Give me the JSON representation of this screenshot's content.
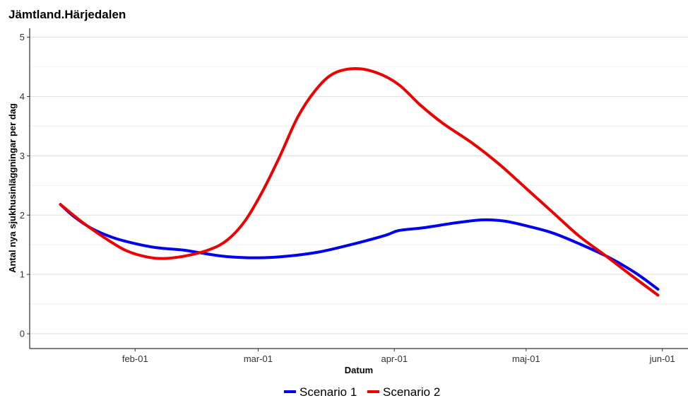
{
  "chart_data": {
    "type": "line",
    "title": "Jämtland.Härjedalen",
    "xlabel": "Datum",
    "ylabel": "Antal nya sjukhusinläggningar per dag",
    "x_type": "date",
    "x_ticks": [
      {
        "date": "2021-02-01",
        "label": "feb-01"
      },
      {
        "date": "2021-03-01",
        "label": "mar-01"
      },
      {
        "date": "2021-04-01",
        "label": "apr-01"
      },
      {
        "date": "2021-05-01",
        "label": "maj-01"
      },
      {
        "date": "2021-06-01",
        "label": "jun-01"
      }
    ],
    "xlim": [
      "2021-01-08",
      "2021-06-07"
    ],
    "ylim": [
      -0.25,
      5.15
    ],
    "y_ticks": [
      0,
      1,
      2,
      3,
      4,
      5
    ],
    "grid": true,
    "legend_position": "bottom",
    "series": [
      {
        "name": "Scenario 1",
        "color": "#0000ee",
        "points": [
          [
            "2021-01-15",
            2.18
          ],
          [
            "2021-01-18",
            1.98
          ],
          [
            "2021-01-22",
            1.78
          ],
          [
            "2021-01-27",
            1.62
          ],
          [
            "2021-02-01",
            1.52
          ],
          [
            "2021-02-06",
            1.45
          ],
          [
            "2021-02-12",
            1.41
          ],
          [
            "2021-02-17",
            1.35
          ],
          [
            "2021-02-22",
            1.3
          ],
          [
            "2021-03-01",
            1.28
          ],
          [
            "2021-03-08",
            1.31
          ],
          [
            "2021-03-15",
            1.38
          ],
          [
            "2021-03-22",
            1.5
          ],
          [
            "2021-03-30",
            1.66
          ],
          [
            "2021-04-02",
            1.74
          ],
          [
            "2021-04-08",
            1.79
          ],
          [
            "2021-04-15",
            1.87
          ],
          [
            "2021-04-21",
            1.92
          ],
          [
            "2021-04-26",
            1.9
          ],
          [
            "2021-05-01",
            1.82
          ],
          [
            "2021-05-07",
            1.7
          ],
          [
            "2021-05-13",
            1.52
          ],
          [
            "2021-05-20",
            1.28
          ],
          [
            "2021-05-26",
            1.02
          ],
          [
            "2021-05-31",
            0.75
          ]
        ]
      },
      {
        "name": "Scenario 2",
        "color": "#ee0000",
        "points": [
          [
            "2021-01-15",
            2.18
          ],
          [
            "2021-01-20",
            1.88
          ],
          [
            "2021-01-25",
            1.62
          ],
          [
            "2021-01-30",
            1.4
          ],
          [
            "2021-02-04",
            1.29
          ],
          [
            "2021-02-08",
            1.27
          ],
          [
            "2021-02-13",
            1.32
          ],
          [
            "2021-02-18",
            1.42
          ],
          [
            "2021-02-22",
            1.58
          ],
          [
            "2021-02-26",
            1.9
          ],
          [
            "2021-03-02",
            2.4
          ],
          [
            "2021-03-06",
            3.0
          ],
          [
            "2021-03-10",
            3.65
          ],
          [
            "2021-03-14",
            4.1
          ],
          [
            "2021-03-18",
            4.38
          ],
          [
            "2021-03-23",
            4.47
          ],
          [
            "2021-03-28",
            4.4
          ],
          [
            "2021-04-02",
            4.2
          ],
          [
            "2021-04-07",
            3.85
          ],
          [
            "2021-04-12",
            3.55
          ],
          [
            "2021-04-19",
            3.2
          ],
          [
            "2021-04-25",
            2.85
          ],
          [
            "2021-05-01",
            2.45
          ],
          [
            "2021-05-07",
            2.05
          ],
          [
            "2021-05-13",
            1.65
          ],
          [
            "2021-05-19",
            1.32
          ],
          [
            "2021-05-25",
            0.98
          ],
          [
            "2021-05-31",
            0.65
          ]
        ]
      }
    ]
  }
}
